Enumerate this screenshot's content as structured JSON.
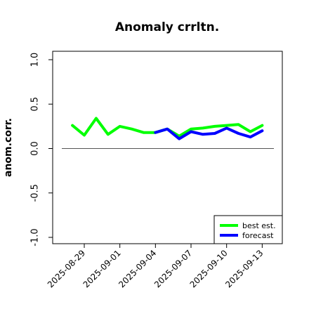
{
  "chart_data": {
    "type": "line",
    "title": "Anomaly crrltn.",
    "xlabel": "",
    "ylabel": "anom.corr.",
    "ylim": [
      -1.0,
      1.0
    ],
    "yticks": [
      "-1.0",
      "-0.5",
      "0.0",
      "0.5",
      "1.0"
    ],
    "xticks": [
      "2025-08-29",
      "2025-09-01",
      "2025-09-04",
      "2025-09-07",
      "2025-09-10",
      "2025-09-13"
    ],
    "highlighted_xtick": "2025-09-04",
    "highlight_color": "#228b22",
    "reference_line": 0.0,
    "legend_position": "bottom-right",
    "grid": false,
    "series": [
      {
        "name": "best est.",
        "color": "#00ff00",
        "x": [
          "2025-08-28",
          "2025-08-29",
          "2025-08-30",
          "2025-08-31",
          "2025-09-01",
          "2025-09-02",
          "2025-09-03",
          "2025-09-04",
          "2025-09-05",
          "2025-09-06",
          "2025-09-07",
          "2025-09-08",
          "2025-09-09",
          "2025-09-10",
          "2025-09-11",
          "2025-09-12",
          "2025-09-13"
        ],
        "values": [
          0.26,
          0.15,
          0.34,
          0.16,
          0.25,
          0.22,
          0.18,
          0.18,
          0.22,
          0.14,
          0.22,
          0.23,
          0.25,
          0.26,
          0.27,
          0.19,
          0.26
        ]
      },
      {
        "name": "forecast",
        "color": "#0000ff",
        "x": [
          "2025-09-04",
          "2025-09-05",
          "2025-09-06",
          "2025-09-07",
          "2025-09-08",
          "2025-09-09",
          "2025-09-10",
          "2025-09-11",
          "2025-09-12",
          "2025-09-13"
        ],
        "values": [
          0.18,
          0.22,
          0.11,
          0.19,
          0.16,
          0.17,
          0.23,
          0.17,
          0.13,
          0.2
        ]
      }
    ]
  }
}
